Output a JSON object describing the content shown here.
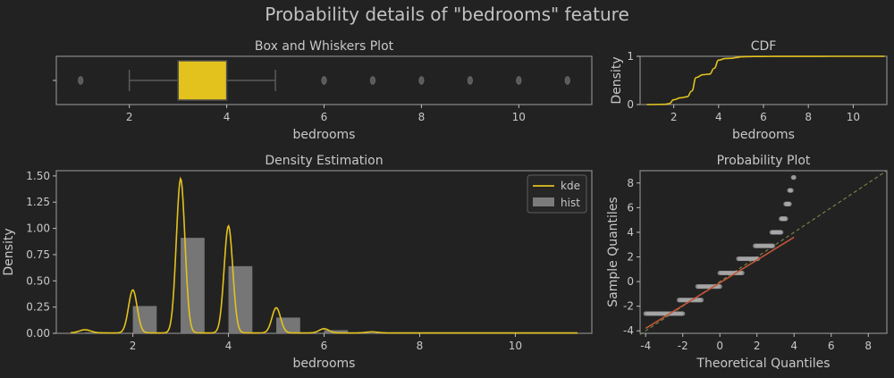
{
  "figure": {
    "title": "Probability details of \"bedrooms\" feature"
  },
  "chart_data": [
    {
      "type": "box",
      "title": "Box and Whiskers Plot",
      "xlabel": "bedrooms",
      "ylabel": "",
      "xlim": [
        0.5,
        11.5
      ],
      "xticks": [
        2,
        4,
        6,
        8,
        10
      ],
      "q1": 3,
      "median": 3,
      "q3": 4,
      "whisker_low": 2,
      "whisker_high": 5,
      "outliers": [
        1,
        6,
        7,
        8,
        9,
        10,
        11
      ],
      "box_color": "#e3c21e"
    },
    {
      "type": "line",
      "title": "CDF",
      "xlabel": "bedrooms",
      "ylabel": "Density",
      "xlim": [
        0.5,
        11.5
      ],
      "ylim": [
        0,
        1
      ],
      "xticks": [
        2,
        4,
        6,
        8,
        10
      ],
      "yticks": [
        0,
        1
      ],
      "x": [
        0.8,
        1.6,
        1.8,
        2.0,
        2.3,
        2.6,
        2.8,
        3.0,
        3.3,
        3.6,
        3.8,
        4.0,
        4.3,
        4.6,
        4.8,
        5.0,
        5.3,
        5.6,
        6.0,
        6.5,
        7.0,
        8.0,
        9.0,
        10.0,
        11.4
      ],
      "y": [
        0.0,
        0.005,
        0.02,
        0.1,
        0.14,
        0.16,
        0.28,
        0.56,
        0.62,
        0.63,
        0.75,
        0.92,
        0.955,
        0.96,
        0.975,
        0.99,
        0.994,
        0.996,
        0.997,
        0.998,
        0.999,
        0.999,
        1.0,
        1.0,
        1.0
      ],
      "line_color": "#e3c21e"
    },
    {
      "type": "bar+line",
      "title": "Density Estimation",
      "xlabel": "bedrooms",
      "ylabel": "Density",
      "xlim": [
        0.4,
        11.6
      ],
      "ylim": [
        0,
        1.55
      ],
      "xticks": [
        2,
        4,
        6,
        8,
        10
      ],
      "yticks": [
        0.0,
        0.25,
        0.5,
        0.75,
        1.0,
        1.25,
        1.5
      ],
      "hist": {
        "name": "hist",
        "bins": [
          [
            2.0,
            2.5,
            0.26
          ],
          [
            3.0,
            3.5,
            0.91
          ],
          [
            4.0,
            4.5,
            0.64
          ],
          [
            5.0,
            5.5,
            0.15
          ],
          [
            6.0,
            6.5,
            0.03
          ],
          [
            1.0,
            1.5,
            0.01
          ]
        ],
        "color": "#7b7b7b"
      },
      "kde": {
        "name": "kde",
        "peaks": [
          [
            1.0,
            0.03,
            0.12
          ],
          [
            2.0,
            0.41,
            0.09
          ],
          [
            3.0,
            1.47,
            0.09
          ],
          [
            4.0,
            1.02,
            0.09
          ],
          [
            5.0,
            0.24,
            0.09
          ],
          [
            6.0,
            0.04,
            0.1
          ],
          [
            7.0,
            0.01,
            0.12
          ]
        ],
        "x_range": [
          0.7,
          11.3
        ],
        "color": "#e3c21e"
      },
      "legend": "top-right"
    },
    {
      "type": "scatter",
      "title": "Probability Plot",
      "xlabel": "Theoretical Quantiles",
      "ylabel": "Sample Quantiles",
      "xlim": [
        -4.3,
        9.0
      ],
      "ylim": [
        -4.2,
        9.0
      ],
      "xticks": [
        -4,
        -2,
        0,
        2,
        4,
        6,
        8
      ],
      "yticks": [
        -4,
        -2,
        0,
        2,
        4,
        6,
        8
      ],
      "steps": [
        [
          -4.0,
          -2.0,
          -2.6
        ],
        [
          -2.2,
          -1.0,
          -1.5
        ],
        [
          -1.2,
          0.0,
          -0.4
        ],
        [
          0.0,
          1.2,
          0.7
        ],
        [
          1.0,
          2.1,
          1.85
        ],
        [
          1.9,
          2.9,
          2.9
        ],
        [
          2.8,
          3.3,
          4.0
        ],
        [
          3.3,
          3.55,
          5.1
        ],
        [
          3.55,
          3.75,
          6.3
        ],
        [
          3.75,
          3.85,
          7.4
        ],
        [
          3.95,
          4.0,
          8.45
        ]
      ],
      "fit_line": {
        "x": [
          -4.0,
          4.0
        ],
        "y": [
          -3.8,
          3.6
        ],
        "color": "#c0553a"
      },
      "reference_line": {
        "x": [
          -4.3,
          9.0
        ],
        "y": [
          -4.3,
          9.0
        ],
        "color": "#7f8f4a"
      },
      "marker_color": "#a9a9a9"
    }
  ]
}
